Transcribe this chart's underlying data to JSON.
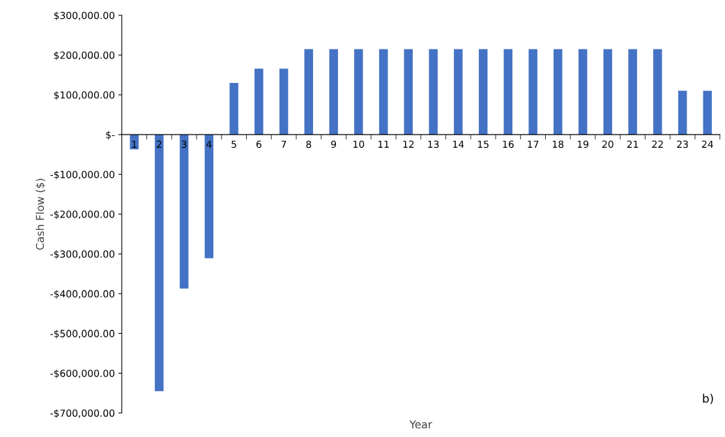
{
  "chart_data": {
    "type": "bar",
    "xlabel": "Year",
    "ylabel": "Cash Flow ($)",
    "categories": [
      "1",
      "2",
      "3",
      "4",
      "5",
      "6",
      "7",
      "8",
      "9",
      "10",
      "11",
      "12",
      "13",
      "14",
      "15",
      "16",
      "17",
      "18",
      "19",
      "20",
      "21",
      "22",
      "23",
      "24"
    ],
    "values": [
      -37000,
      -645000,
      -387000,
      -311000,
      130000,
      166000,
      166000,
      215000,
      215000,
      215000,
      215000,
      215000,
      215000,
      215000,
      215000,
      215000,
      215000,
      215000,
      215000,
      215000,
      215000,
      215000,
      110000,
      110000
    ],
    "color": "#4472c4",
    "ylim": [
      -700000,
      300000
    ],
    "yticks": [
      {
        "value": -700000,
        "label": "-$700,000.00"
      },
      {
        "value": -600000,
        "label": "-$600,000.00"
      },
      {
        "value": -500000,
        "label": "-$500,000.00"
      },
      {
        "value": -400000,
        "label": "-$400,000.00"
      },
      {
        "value": -300000,
        "label": "-$300,000.00"
      },
      {
        "value": -200000,
        "label": "-$200,000.00"
      },
      {
        "value": -100000,
        "label": "-$100,000.00"
      },
      {
        "value": 0,
        "label": "$-"
      },
      {
        "value": 100000,
        "label": "$100,000.00"
      },
      {
        "value": 200000,
        "label": "$200,000.00"
      },
      {
        "value": 300000,
        "label": "$300,000.00"
      }
    ],
    "grid": false,
    "annotations": [
      "b)"
    ]
  }
}
